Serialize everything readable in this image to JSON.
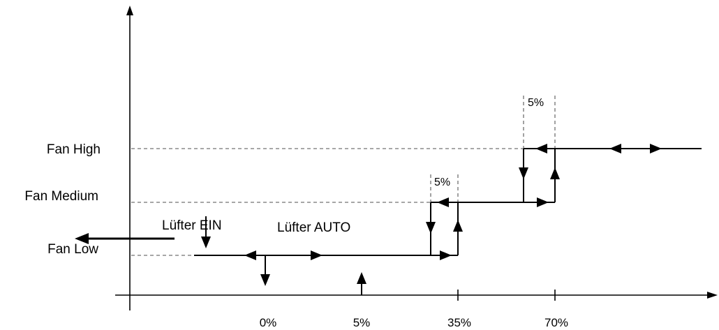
{
  "levels": {
    "high": "Fan High",
    "medium": "Fan Medium",
    "low": "Fan Low"
  },
  "modes": {
    "on": "Lüfter EIN",
    "auto": "Lüfter AUTO"
  },
  "x_ticks": [
    "0%",
    "5%",
    "35%",
    "70%"
  ],
  "band": {
    "medium": "5%",
    "high": "5%"
  }
}
